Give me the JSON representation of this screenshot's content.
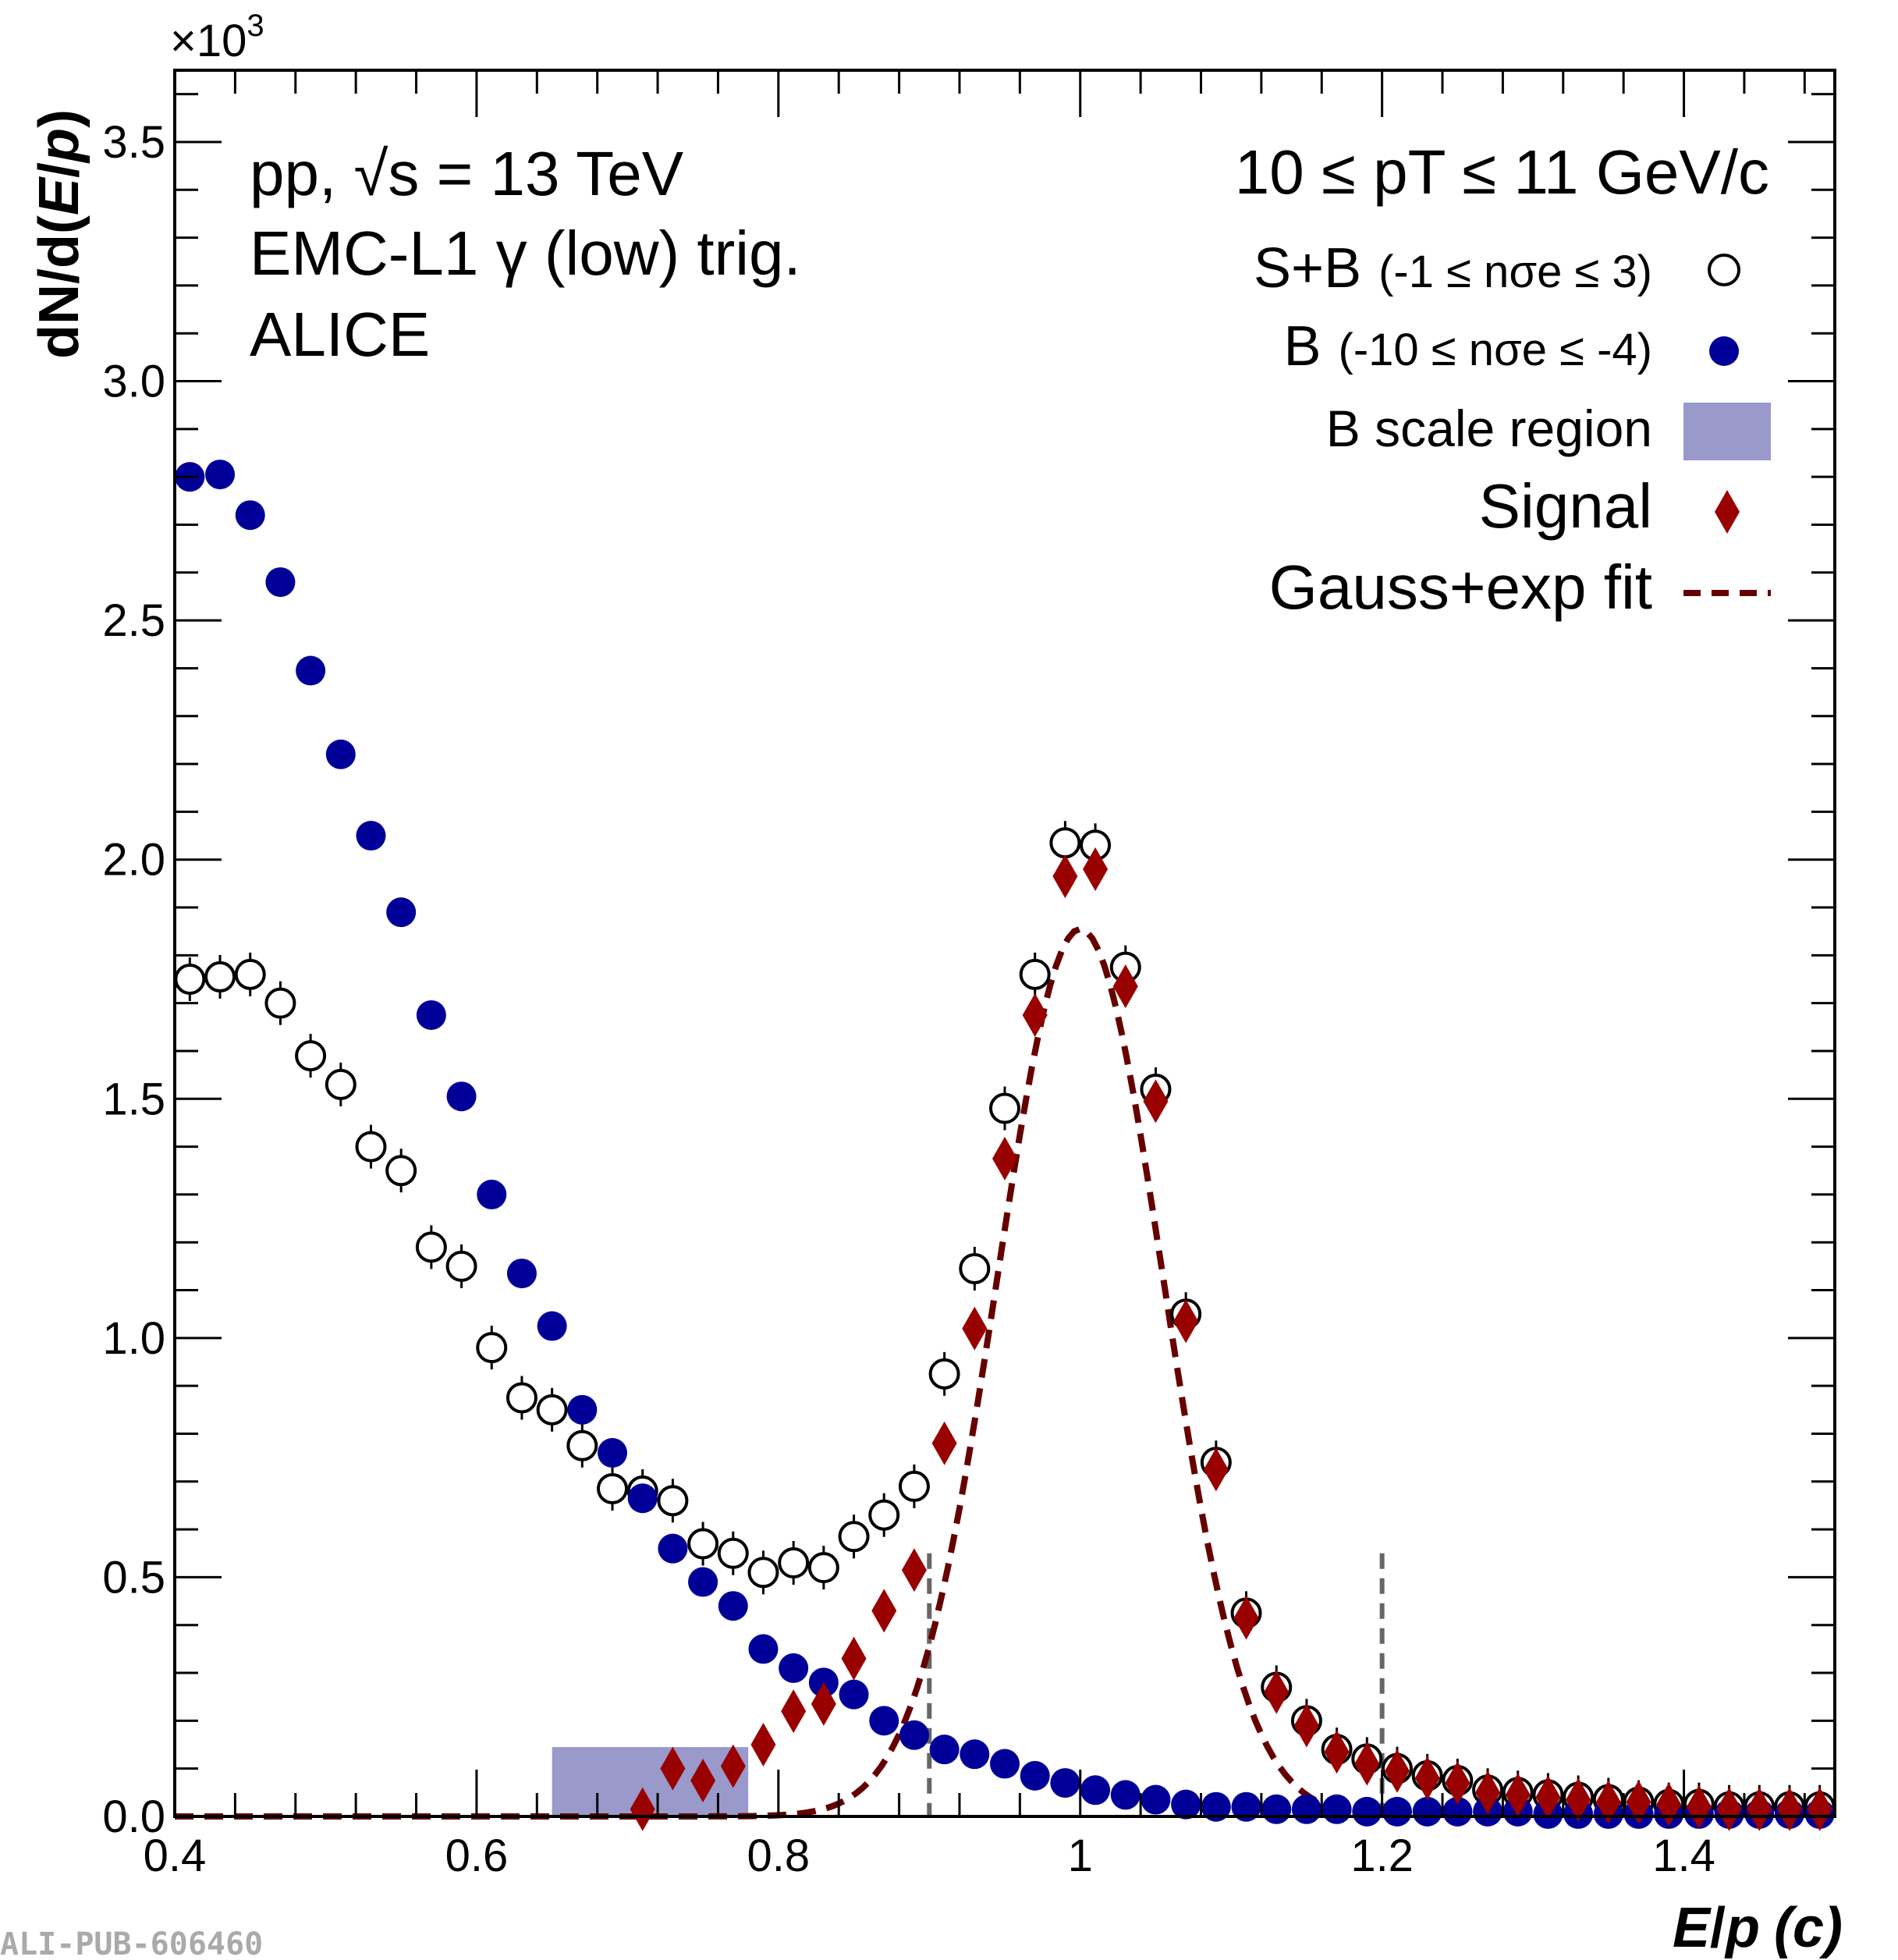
{
  "chart_data": {
    "type": "scatter",
    "multiplier": "×10",
    "multiplier_exp": "3",
    "xlabel": {
      "main": "E",
      "sep": "/",
      "p": "p",
      "unit": "(c)"
    },
    "ylabel": {
      "pre": "dN/d(",
      "E": "E",
      "sep": "/",
      "p": "p",
      "post": ")"
    },
    "xlim": [
      0.4,
      1.5
    ],
    "ylim": [
      0,
      3.65
    ],
    "xticks": [
      {
        "v": 0.4,
        "label": "0.4"
      },
      {
        "v": 0.6,
        "label": "0.6"
      },
      {
        "v": 0.8,
        "label": "0.8"
      },
      {
        "v": 1.0,
        "label": "1"
      },
      {
        "v": 1.2,
        "label": "1.2"
      },
      {
        "v": 1.4,
        "label": "1.4"
      }
    ],
    "yticks": [
      {
        "v": 0.0,
        "label": "0.0"
      },
      {
        "v": 0.5,
        "label": "0.5"
      },
      {
        "v": 1.0,
        "label": "1.0"
      },
      {
        "v": 1.5,
        "label": "1.5"
      },
      {
        "v": 2.0,
        "label": "2.0"
      },
      {
        "v": 2.5,
        "label": "2.5"
      },
      {
        "v": 3.0,
        "label": "3.0"
      },
      {
        "v": 3.5,
        "label": "3.5"
      }
    ],
    "info": {
      "line1": "pp, √s = 13 TeV",
      "line2": "EMC-L1 γ (low) trig.",
      "line3": "ALICE",
      "pt_range": "10 ≤ pT ≤ 11 GeV/c"
    },
    "legend": [
      {
        "key": "sb",
        "label": "S+B",
        "sub": "(-1 ≤ nσe ≤  3)"
      },
      {
        "key": "b",
        "label": "B",
        "sub": "(-10 ≤ nσe ≤ -4)"
      },
      {
        "key": "scale",
        "label": "B scale region"
      },
      {
        "key": "signal",
        "label": "Signal"
      },
      {
        "key": "fit",
        "label": "Gauss+exp fit"
      }
    ],
    "scale_region": {
      "x": [
        0.65,
        0.78
      ],
      "y": [
        0,
        0.145
      ]
    },
    "vertical_lines": [
      0.9,
      1.2
    ],
    "vertical_line_top": 0.55,
    "colors": {
      "sb": "#000000",
      "b": "#000099",
      "signal": "#990000",
      "fit": "#660000",
      "scale": "#9999cc",
      "vline": "#666666"
    },
    "series": [
      {
        "name": "S+B",
        "x": [
          0.41,
          0.43,
          0.45,
          0.47,
          0.49,
          0.51,
          0.53,
          0.55,
          0.57,
          0.59,
          0.61,
          0.63,
          0.65,
          0.67,
          0.69,
          0.71,
          0.73,
          0.75,
          0.77,
          0.79,
          0.81,
          0.83,
          0.85,
          0.87,
          0.89,
          0.91,
          0.93,
          0.95,
          0.97,
          0.99,
          1.01,
          1.03,
          1.05,
          1.07,
          1.09,
          1.11,
          1.13,
          1.15,
          1.17,
          1.19,
          1.21,
          1.23,
          1.25,
          1.27,
          1.29,
          1.31,
          1.33,
          1.35,
          1.37,
          1.39,
          1.41,
          1.43,
          1.45,
          1.47,
          1.49
        ],
        "y": [
          1.75,
          1.755,
          1.76,
          1.7,
          1.59,
          1.53,
          1.4,
          1.35,
          1.19,
          1.15,
          0.98,
          0.875,
          0.85,
          0.775,
          0.685,
          0.68,
          0.66,
          0.57,
          0.55,
          0.51,
          0.53,
          0.52,
          0.585,
          0.63,
          0.69,
          0.925,
          1.145,
          1.48,
          1.76,
          2.035,
          2.03,
          1.775,
          1.52,
          1.05,
          0.74,
          0.425,
          0.27,
          0.2,
          0.14,
          0.12,
          0.1,
          0.085,
          0.075,
          0.055,
          0.05,
          0.045,
          0.04,
          0.035,
          0.03,
          0.025,
          0.025,
          0.02,
          0.02,
          0.02,
          0.02
        ]
      },
      {
        "name": "B",
        "x": [
          0.41,
          0.43,
          0.45,
          0.47,
          0.49,
          0.51,
          0.53,
          0.55,
          0.57,
          0.59,
          0.61,
          0.63,
          0.65,
          0.67,
          0.69,
          0.71,
          0.73,
          0.75,
          0.77,
          0.79,
          0.81,
          0.83,
          0.85,
          0.87,
          0.89,
          0.91,
          0.93,
          0.95,
          0.97,
          0.99,
          1.01,
          1.03,
          1.05,
          1.07,
          1.09,
          1.11,
          1.13,
          1.15,
          1.17,
          1.19,
          1.21,
          1.23,
          1.25,
          1.27,
          1.29,
          1.31,
          1.33,
          1.35,
          1.37,
          1.39,
          1.41,
          1.43,
          1.45,
          1.47,
          1.49
        ],
        "y": [
          2.8,
          2.805,
          2.72,
          2.58,
          2.395,
          2.22,
          2.05,
          1.89,
          1.675,
          1.505,
          1.3,
          1.135,
          1.025,
          0.85,
          0.76,
          0.665,
          0.56,
          0.49,
          0.44,
          0.35,
          0.31,
          0.28,
          0.255,
          0.2,
          0.17,
          0.14,
          0.13,
          0.11,
          0.085,
          0.07,
          0.055,
          0.045,
          0.035,
          0.025,
          0.02,
          0.02,
          0.015,
          0.015,
          0.015,
          0.01,
          0.01,
          0.01,
          0.01,
          0.01,
          0.01,
          0.005,
          0.005,
          0.005,
          0.005,
          0.005,
          0.005,
          0.005,
          0.005,
          0.005,
          0.005
        ]
      },
      {
        "name": "Signal",
        "x": [
          0.71,
          0.73,
          0.75,
          0.77,
          0.79,
          0.81,
          0.83,
          0.85,
          0.87,
          0.89,
          0.91,
          0.93,
          0.95,
          0.97,
          0.99,
          1.01,
          1.03,
          1.05,
          1.07,
          1.09,
          1.11,
          1.13,
          1.15,
          1.17,
          1.19,
          1.21,
          1.23,
          1.25,
          1.27,
          1.29,
          1.31,
          1.33,
          1.35,
          1.37,
          1.39,
          1.41,
          1.43,
          1.45,
          1.47,
          1.49
        ],
        "y": [
          0.015,
          0.1,
          0.075,
          0.105,
          0.15,
          0.22,
          0.235,
          0.33,
          0.43,
          0.515,
          0.78,
          1.02,
          1.375,
          1.675,
          1.965,
          1.98,
          1.735,
          1.495,
          1.035,
          0.725,
          0.415,
          0.26,
          0.19,
          0.135,
          0.11,
          0.095,
          0.08,
          0.07,
          0.05,
          0.045,
          0.04,
          0.035,
          0.03,
          0.03,
          0.025,
          0.02,
          0.015,
          0.015,
          0.015,
          0.015
        ]
      },
      {
        "name": "Gauss+exp fit",
        "mean": 1.0,
        "sigma": 0.055,
        "amp": 1.855,
        "range": [
          0.4,
          1.2
        ]
      }
    ]
  },
  "watermark": "ALI-PUB-606460"
}
